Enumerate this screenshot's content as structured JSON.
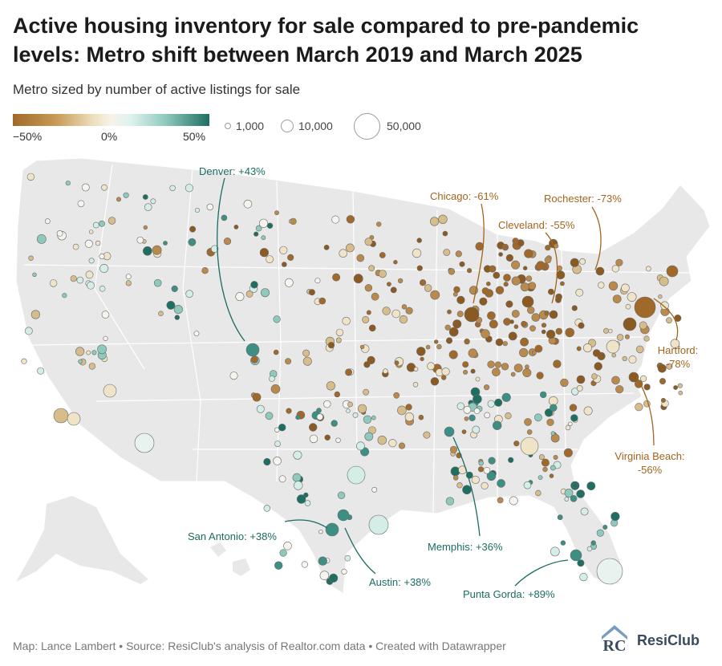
{
  "header": {
    "title_line1": "Active housing inventory for sale compared to pre-pandemic",
    "title_line2": "levels: Metro shift between March 2019 and March 2025",
    "subtitle": "Metro sized by number of active listings for sale"
  },
  "legend": {
    "color_scale": {
      "min_label": "−50%",
      "mid_label": "0%",
      "max_label": "50%",
      "colors": [
        "#a0692a",
        "#c89a55",
        "#ecdcb8",
        "#f7f3ea",
        "#dff2ee",
        "#8dc9bc",
        "#1f6e62"
      ]
    },
    "size_scale": [
      {
        "label": "1,000",
        "listings": 1000
      },
      {
        "label": "10,000",
        "listings": 10000
      },
      {
        "label": "50,000",
        "listings": 50000
      }
    ]
  },
  "annotations": [
    {
      "label": "Denver: +43%",
      "change": 43,
      "tone": "teal"
    },
    {
      "label": "Chicago: -61%",
      "change": -61,
      "tone": "brown"
    },
    {
      "label": "Rochester: -73%",
      "change": -73,
      "tone": "brown"
    },
    {
      "label": "Cleveland: -55%",
      "change": -55,
      "tone": "brown"
    },
    {
      "label_line1": "Hartford:",
      "label_line2": "-78%",
      "change": -78,
      "tone": "brown"
    },
    {
      "label_line1": "Virginia Beach:",
      "label_line2": "-56%",
      "change": -56,
      "tone": "brown"
    },
    {
      "label": "San Antonio: +38%",
      "change": 38,
      "tone": "teal"
    },
    {
      "label": "Memphis: +36%",
      "change": 36,
      "tone": "teal"
    },
    {
      "label": "Austin: +38%",
      "change": 38,
      "tone": "teal"
    },
    {
      "label": "Punta Gorda: +89%",
      "change": 89,
      "tone": "teal"
    }
  ],
  "footer": {
    "credit": "Map: Lance Lambert • Source: ResiClub's analysis of Realtor.com data • Created with Datawrapper",
    "logo_text": "ResiClub",
    "logo_mark": "RC"
  },
  "map": {
    "land_color": "#e8e8e8",
    "border_color": "#ffffff",
    "brown": "#a0692a",
    "teal": "#1f6e62"
  }
}
